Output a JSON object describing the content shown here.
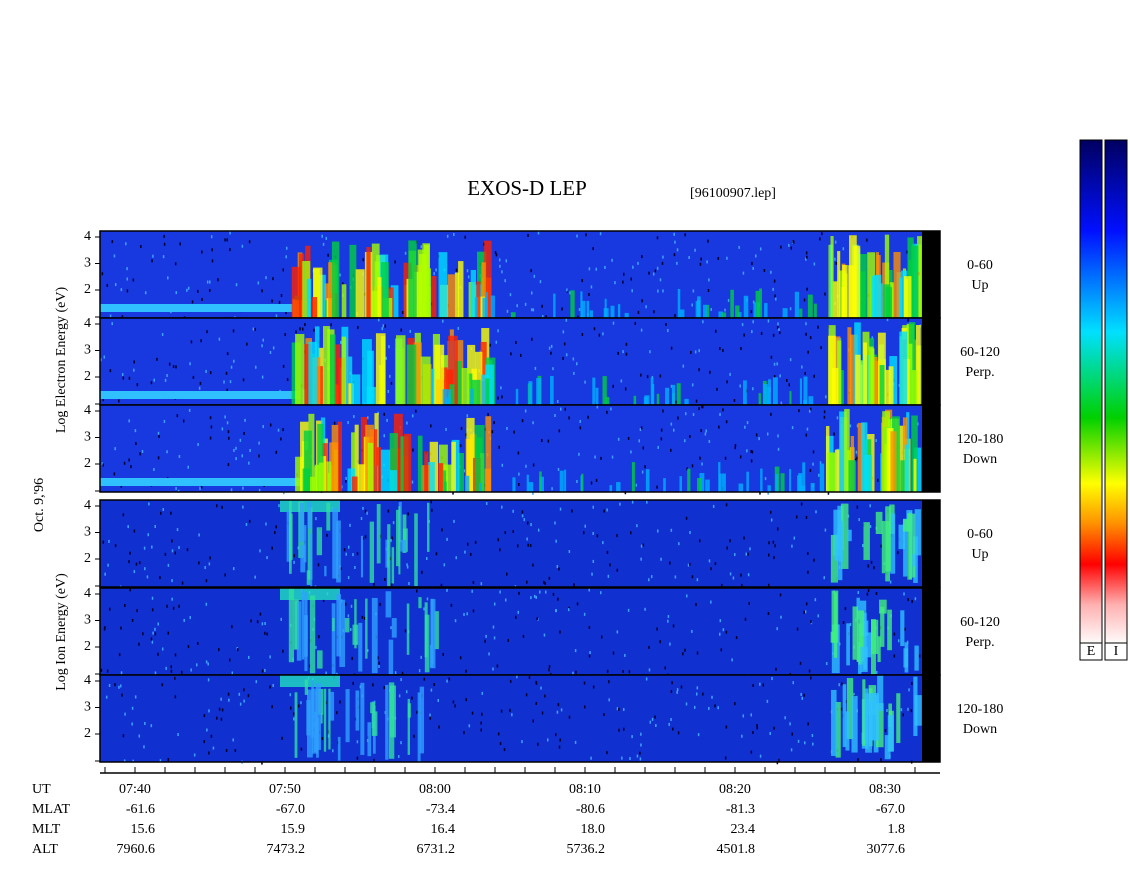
{
  "title": "EXOS-D LEP",
  "file": "[96100907.lep]",
  "date": "Oct. 9,'96",
  "electron_label": "Log Electron Energy (eV)",
  "ion_label": "Log Ion Energy (eV)",
  "panels": [
    {
      "species": "electron",
      "channel": "0-60",
      "direction": "Up",
      "yticks": [
        4,
        3,
        2
      ]
    },
    {
      "species": "electron",
      "channel": "60-120",
      "direction": "Perp.",
      "yticks": [
        4,
        3,
        2
      ]
    },
    {
      "species": "electron",
      "channel": "120-180",
      "direction": "Down",
      "yticks": [
        4,
        3,
        2
      ]
    },
    {
      "species": "ion",
      "channel": "0-60",
      "direction": "Up",
      "yticks": [
        4,
        3,
        2
      ]
    },
    {
      "species": "ion",
      "channel": "60-120",
      "direction": "Perp.",
      "yticks": [
        4,
        3,
        2
      ]
    },
    {
      "species": "ion",
      "channel": "120-180",
      "direction": "Down",
      "yticks": [
        4,
        3,
        2
      ]
    }
  ],
  "time_axis": {
    "row_labels": [
      "UT",
      "MLAT",
      "MLT",
      "ALT"
    ],
    "columns": [
      [
        "07:40",
        "-61.6",
        "15.6",
        "7960.6"
      ],
      [
        "07:50",
        "-67.0",
        "15.9",
        "7473.2"
      ],
      [
        "08:00",
        "-73.4",
        "16.4",
        "6731.2"
      ],
      [
        "08:10",
        "-80.6",
        "18.0",
        "5736.2"
      ],
      [
        "08:20",
        "-81.3",
        "23.4",
        "4501.8"
      ],
      [
        "08:30",
        "-67.0",
        "1.8",
        "3077.6"
      ]
    ]
  },
  "colorbar_labels": [
    "E",
    "I"
  ]
}
